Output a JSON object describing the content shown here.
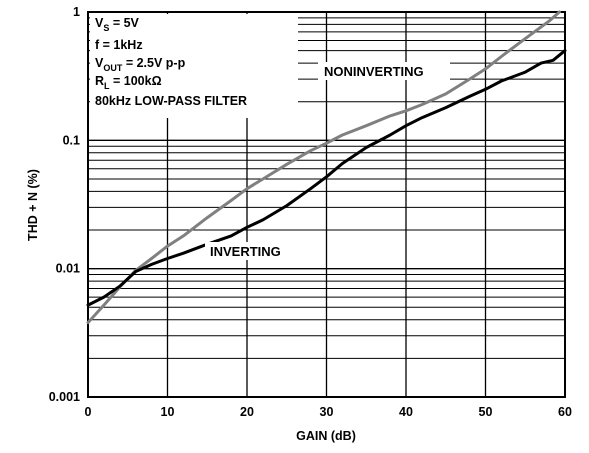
{
  "chart_data": {
    "type": "line",
    "xlabel": "GAIN (dB)",
    "ylabel": "THD + N (%)",
    "x_scale": "linear",
    "y_scale": "log",
    "xlim": [
      0,
      60
    ],
    "ylim": [
      0.001,
      1
    ],
    "x_ticks": [
      0,
      10,
      20,
      30,
      40,
      50,
      60
    ],
    "x_tick_labels": [
      "0",
      "10",
      "20",
      "30",
      "40",
      "50",
      "60"
    ],
    "y_ticks": [
      0.001,
      0.01,
      0.1,
      1
    ],
    "y_tick_labels": [
      "0.001",
      "0.01",
      "0.1",
      "1"
    ],
    "grid": true,
    "conditions": {
      "vs": {
        "main": "V",
        "sub": "S",
        "rest": " = 5V"
      },
      "freq": "f = 1kHz",
      "vout": {
        "main": "V",
        "sub": "OUT",
        "rest": " = 2.5V p-p"
      },
      "rl": {
        "main": "R",
        "sub": "L",
        "rest": " = 100kΩ"
      },
      "filter": "80kHz LOW-PASS FILTER"
    },
    "series": [
      {
        "name": "NONINVERTING",
        "color": "#808080",
        "x": [
          0,
          2,
          4,
          6,
          8,
          10,
          12,
          15,
          18,
          20,
          22,
          25,
          28,
          30,
          32,
          35,
          38,
          40,
          42,
          45,
          48,
          50,
          52,
          55,
          58,
          59.3
        ],
        "y": [
          0.0038,
          0.0052,
          0.0072,
          0.0097,
          0.012,
          0.015,
          0.018,
          0.025,
          0.034,
          0.042,
          0.05,
          0.065,
          0.083,
          0.095,
          0.11,
          0.13,
          0.155,
          0.17,
          0.19,
          0.23,
          0.3,
          0.36,
          0.45,
          0.62,
          0.85,
          1.0
        ]
      },
      {
        "name": "INVERTING",
        "color": "#000000",
        "x": [
          0,
          2,
          4,
          6,
          8,
          10,
          12,
          15,
          18,
          20,
          22,
          25,
          28,
          30,
          32,
          35,
          38,
          40,
          42,
          45,
          48,
          50,
          52,
          55,
          57,
          58.5,
          60
        ],
        "y": [
          0.0052,
          0.006,
          0.0073,
          0.0095,
          0.0108,
          0.012,
          0.0132,
          0.0155,
          0.018,
          0.021,
          0.024,
          0.031,
          0.042,
          0.052,
          0.066,
          0.088,
          0.11,
          0.13,
          0.15,
          0.18,
          0.22,
          0.25,
          0.29,
          0.34,
          0.4,
          0.42,
          0.5
        ]
      }
    ]
  }
}
